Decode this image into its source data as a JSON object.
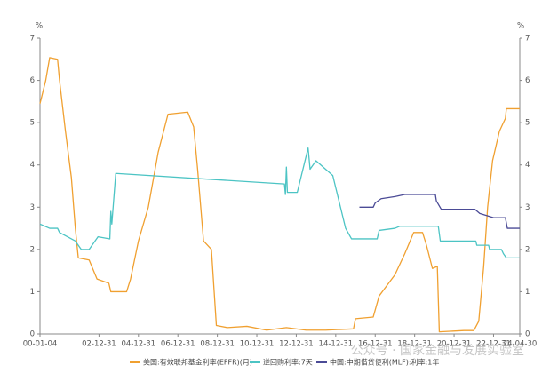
{
  "chart_data": {
    "type": "line",
    "y_unit": "%",
    "y2_unit": "%",
    "watermark": "公众号 · 国家金融与发展实验室",
    "xlim": [
      2000.01,
      2024.33
    ],
    "xticks": [
      {
        "value": 2000.01,
        "label": "00-01-04"
      },
      {
        "value": 2003.0,
        "label": "02-12-31"
      },
      {
        "value": 2005.0,
        "label": "04-12-31"
      },
      {
        "value": 2007.0,
        "label": "06-12-31"
      },
      {
        "value": 2009.0,
        "label": "08-12-31"
      },
      {
        "value": 2011.0,
        "label": "10-12-31"
      },
      {
        "value": 2013.0,
        "label": "12-12-31"
      },
      {
        "value": 2015.0,
        "label": "14-12-31"
      },
      {
        "value": 2017.0,
        "label": "16-12-31"
      },
      {
        "value": 2019.0,
        "label": "18-12-31"
      },
      {
        "value": 2021.0,
        "label": "20-12-31"
      },
      {
        "value": 2023.0,
        "label": "22-12-31"
      },
      {
        "value": 2024.33,
        "label": "24-04-30"
      }
    ],
    "ylim": [
      0,
      7
    ],
    "yticks": [
      0,
      1,
      2,
      3,
      4,
      5,
      6,
      7
    ],
    "y2lim": [
      0,
      7
    ],
    "y2ticks": [
      0,
      1,
      2,
      3,
      4,
      5,
      6,
      7
    ],
    "grid": false,
    "series": [
      {
        "name": "美国:有效联邦基金利率(EFFR)(月)",
        "color": "#f0a030",
        "x": [
          2000.01,
          2000.3,
          2000.5,
          2000.9,
          2001.0,
          2001.3,
          2001.6,
          2001.8,
          2001.95,
          2002.5,
          2002.9,
          2003.5,
          2003.6,
          2004.4,
          2004.6,
          2005.0,
          2005.5,
          2006.0,
          2006.5,
          2007.5,
          2007.8,
          2008.0,
          2008.3,
          2008.7,
          2008.95,
          2009.5,
          2010.5,
          2011.5,
          2012.5,
          2013.5,
          2014.5,
          2015.9,
          2016.0,
          2016.9,
          2017.2,
          2017.6,
          2018.0,
          2018.5,
          2018.95,
          2019.4,
          2019.6,
          2019.9,
          2020.15,
          2020.25,
          2021.5,
          2022.0,
          2022.25,
          2022.5,
          2022.7,
          2022.95,
          2023.3,
          2023.6,
          2023.65,
          2024.33
        ],
        "values": [
          5.45,
          6.0,
          6.54,
          6.5,
          6.0,
          4.8,
          3.7,
          2.5,
          1.8,
          1.75,
          1.3,
          1.2,
          1.0,
          1.0,
          1.3,
          2.2,
          3.0,
          4.3,
          5.2,
          5.25,
          4.9,
          3.9,
          2.2,
          2.0,
          0.2,
          0.15,
          0.18,
          0.09,
          0.15,
          0.09,
          0.09,
          0.12,
          0.36,
          0.4,
          0.9,
          1.15,
          1.4,
          1.9,
          2.4,
          2.4,
          2.1,
          1.55,
          1.6,
          0.05,
          0.08,
          0.08,
          0.3,
          1.6,
          3.0,
          4.1,
          4.8,
          5.1,
          5.33,
          5.33
        ]
      },
      {
        "name": "逆回购利率:7天",
        "color": "#4cc4c4",
        "x": [
          2000.01,
          2000.5,
          2000.9,
          2001.0,
          2001.8,
          2002.1,
          2002.5,
          2002.95,
          2003.55,
          2003.6,
          2003.65,
          2003.85,
          2012.4,
          2012.45,
          2012.5,
          2012.55,
          2013.05,
          2013.6,
          2013.7,
          2014.0,
          2014.85,
          2015.5,
          2015.8,
          2017.1,
          2017.2,
          2018.0,
          2018.25,
          2020.2,
          2020.3,
          2022.1,
          2022.15,
          2022.75,
          2022.8,
          2023.4,
          2023.5,
          2023.65,
          2024.33
        ],
        "values": [
          2.6,
          2.5,
          2.5,
          2.4,
          2.2,
          2.0,
          2.0,
          2.3,
          2.25,
          2.9,
          2.6,
          3.8,
          3.55,
          3.3,
          3.95,
          3.35,
          3.35,
          4.4,
          3.9,
          4.1,
          3.75,
          2.5,
          2.25,
          2.25,
          2.45,
          2.5,
          2.55,
          2.55,
          2.2,
          2.2,
          2.1,
          2.1,
          2.0,
          2.0,
          1.9,
          1.8,
          1.8
        ]
      },
      {
        "name": "中国:中期借贷便利(MLF):利率:1年",
        "color": "#4b4b96",
        "x": [
          2016.2,
          2016.9,
          2017.0,
          2017.3,
          2018.0,
          2018.5,
          2020.05,
          2020.1,
          2020.35,
          2022.05,
          2022.3,
          2023.0,
          2023.6,
          2023.7,
          2024.33
        ],
        "values": [
          3.0,
          3.0,
          3.1,
          3.2,
          3.25,
          3.3,
          3.3,
          3.15,
          2.95,
          2.95,
          2.85,
          2.75,
          2.75,
          2.5,
          2.5
        ]
      }
    ]
  }
}
